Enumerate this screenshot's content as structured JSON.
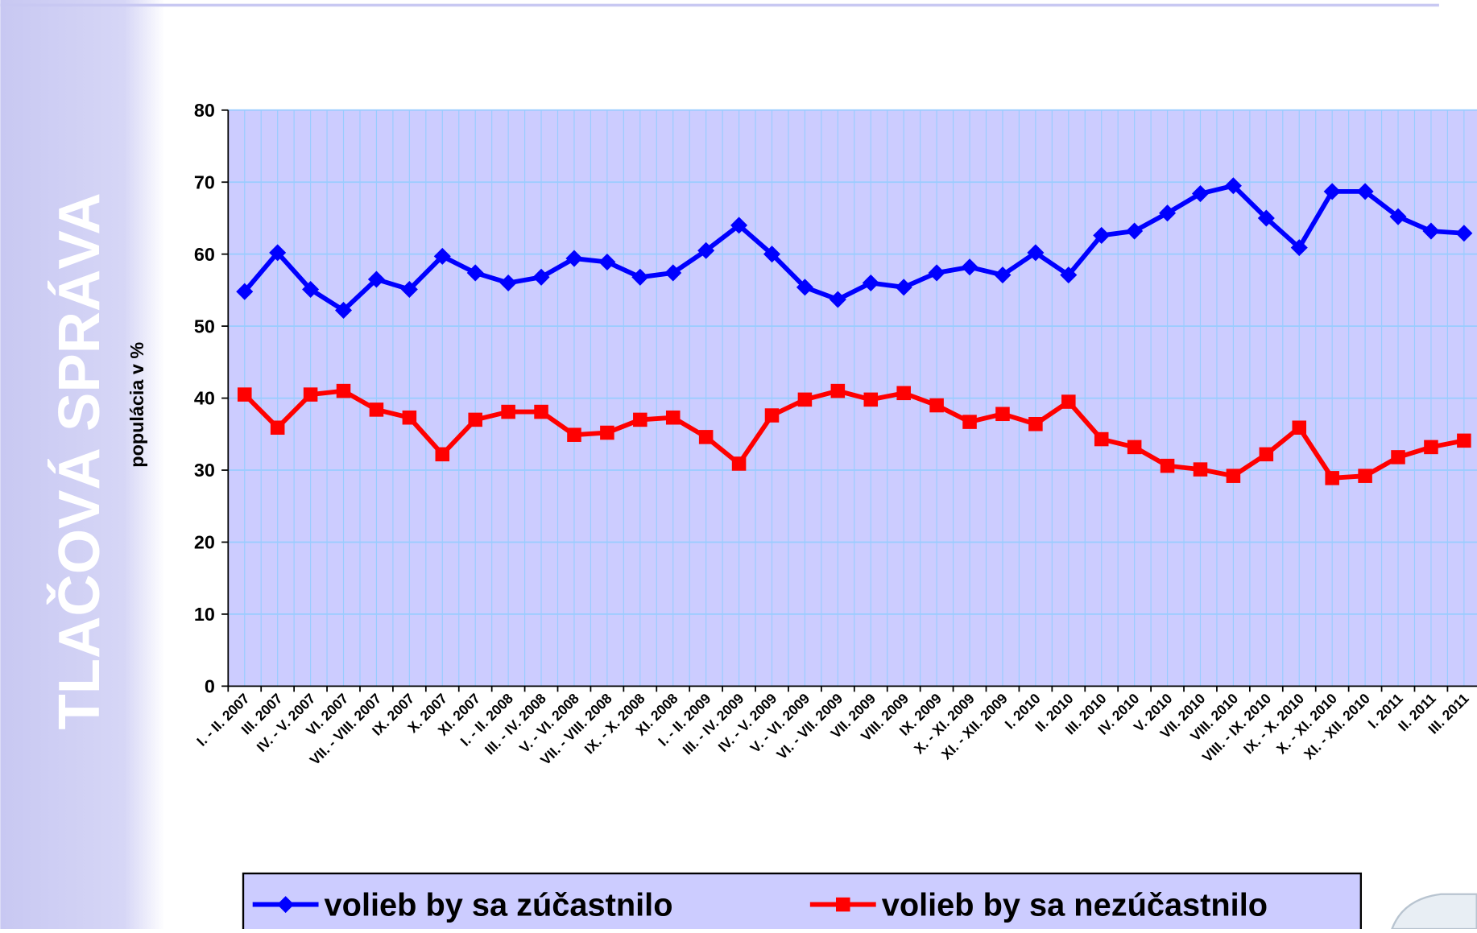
{
  "side_label": "TLAČOVÁ SPRÁVA",
  "chart_data": {
    "type": "line",
    "y_label": "populácia v %",
    "categories": [
      "I. - II. 2007",
      "III. 2007",
      "IV. - V. 2007",
      "VI. 2007",
      "VII. - VIII. 2007",
      "IX. 2007",
      "X. 2007",
      "XI. 2007",
      "I. - II. 2008",
      "III. - IV. 2008",
      "V. - VI. 2008",
      "VII. - VIII. 2008",
      "IX. - X. 2008",
      "XI. 2008",
      "I. - II. 2009",
      "III. - IV. 2009",
      "IV. - V. 2009",
      "V. - VI. 2009",
      "VI. - VII. 2009",
      "VII. 2009",
      "VIII. 2009",
      "IX. 2009",
      "X. - XI. 2009",
      "XI. - XII. 2009",
      "I. 2010",
      "II. 2010",
      "III. 2010",
      "IV. 2010",
      "V. 2010",
      "VII. 2010",
      "VIII. 2010",
      "VIII. - IX. 2010",
      "IX. - X. 2010",
      "X. - XI. 2010",
      "XI. - XII. 2010",
      "I. 2011",
      "II. 2011",
      "III. 2011"
    ],
    "series": [
      {
        "name": "volieb by sa zúčastnilo",
        "color": "#0000ff",
        "marker": "diamond",
        "values": [
          54.8,
          60.2,
          55.1,
          52.2,
          56.5,
          55.1,
          59.7,
          57.4,
          56.0,
          56.8,
          59.4,
          58.9,
          56.8,
          57.4,
          60.5,
          64.0,
          60.0,
          55.4,
          53.7,
          56.0,
          55.4,
          57.4,
          58.2,
          57.1,
          60.2,
          57.1,
          62.6,
          63.2,
          65.7,
          68.4,
          69.5,
          65.0,
          60.9,
          68.7,
          68.7,
          65.2,
          63.2,
          62.9
        ]
      },
      {
        "name": "volieb by sa nezúčastnilo",
        "color": "#ff0000",
        "marker": "square",
        "values": [
          40.5,
          35.9,
          40.5,
          41.0,
          38.4,
          37.3,
          32.2,
          37.0,
          38.1,
          38.1,
          34.9,
          35.2,
          37.0,
          37.3,
          34.6,
          30.9,
          37.6,
          39.8,
          41.0,
          39.8,
          40.7,
          39.0,
          36.7,
          37.8,
          36.4,
          39.5,
          34.3,
          33.2,
          30.6,
          30.1,
          29.2,
          32.2,
          35.9,
          28.9,
          29.2,
          31.8,
          33.2,
          34.1
        ]
      }
    ],
    "ylim": [
      0,
      80
    ],
    "yticks": [
      0,
      10,
      20,
      30,
      40,
      50,
      60,
      70,
      80
    ],
    "grid": true,
    "legend": "bottom"
  }
}
